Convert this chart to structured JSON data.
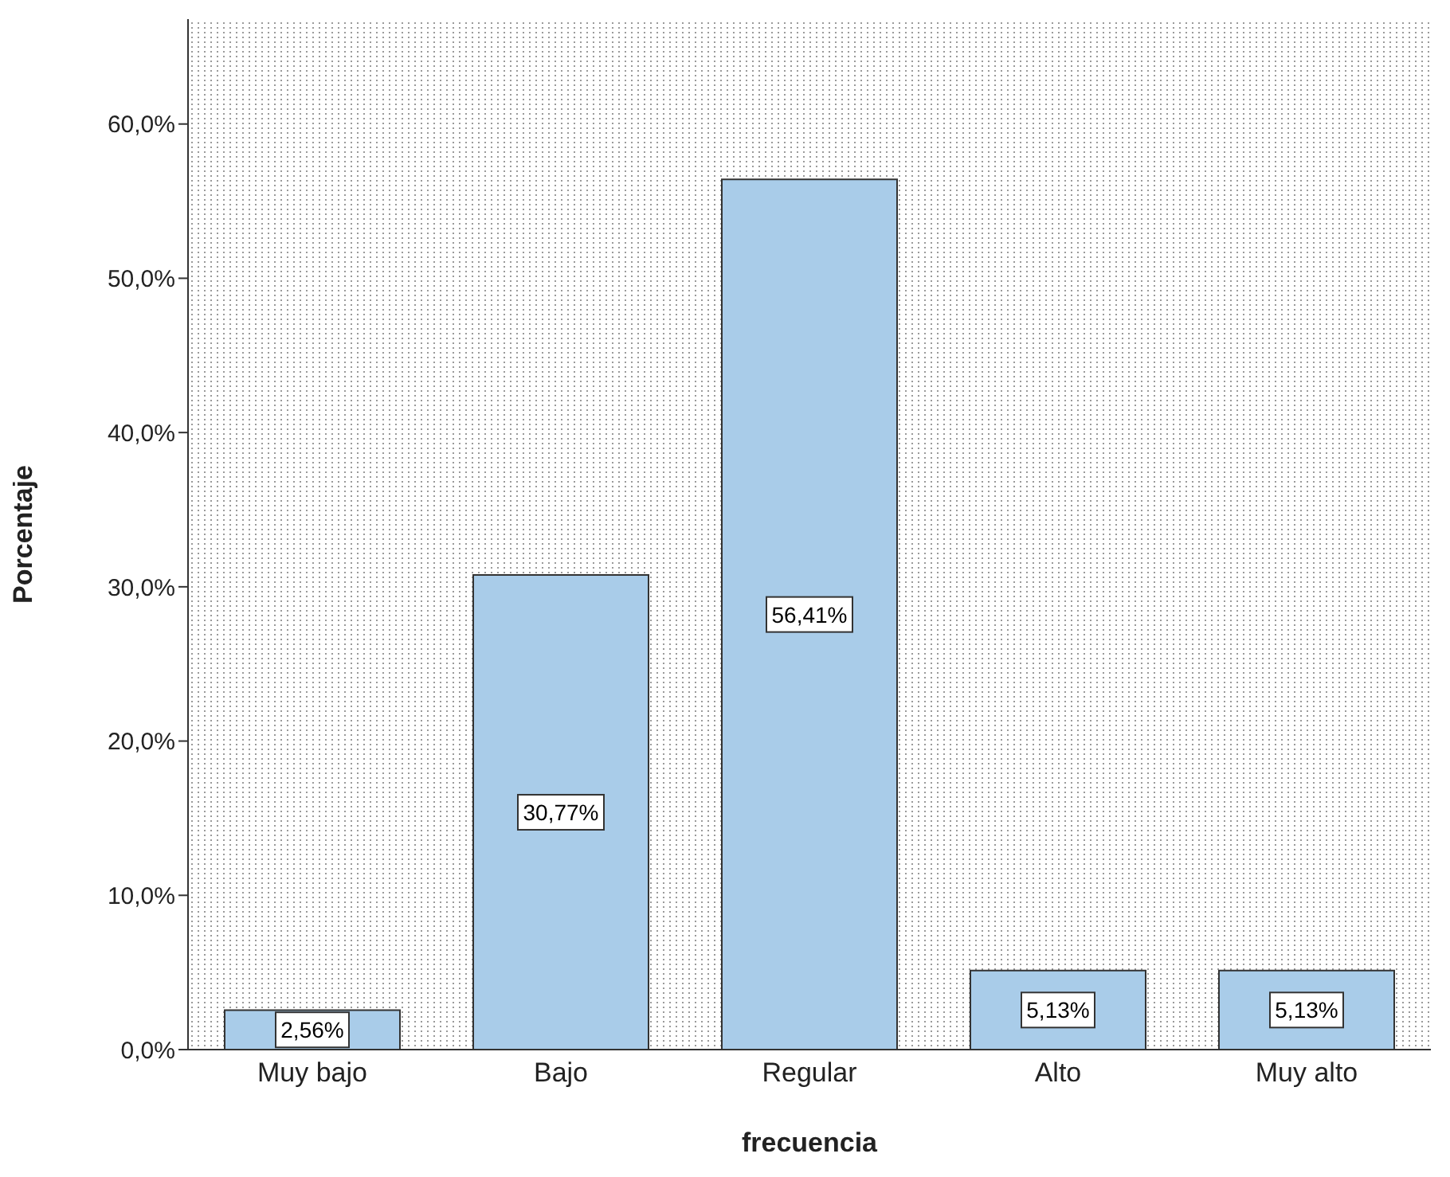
{
  "chart_data": {
    "type": "bar",
    "xlabel": "frecuencia",
    "ylabel": "Porcentaje",
    "categories": [
      "Muy bajo",
      "Bajo",
      "Regular",
      "Alto",
      "Muy alto"
    ],
    "values": [
      2.56,
      30.77,
      56.41,
      5.13,
      5.13
    ],
    "value_labels": [
      "2,56%",
      "30,77%",
      "56,41%",
      "5,13%",
      "5,13%"
    ],
    "color": "#a9cce9",
    "ylim": [
      0,
      66.8
    ],
    "yticks": [
      {
        "value": 0,
        "label": "0,0%"
      },
      {
        "value": 10,
        "label": "10,0%"
      },
      {
        "value": 20,
        "label": "20,0%"
      },
      {
        "value": 30,
        "label": "30,0%"
      },
      {
        "value": 40,
        "label": "40,0%"
      },
      {
        "value": 50,
        "label": "50,0%"
      },
      {
        "value": 60,
        "label": "60,0%"
      }
    ],
    "grid": false,
    "legend": false
  }
}
